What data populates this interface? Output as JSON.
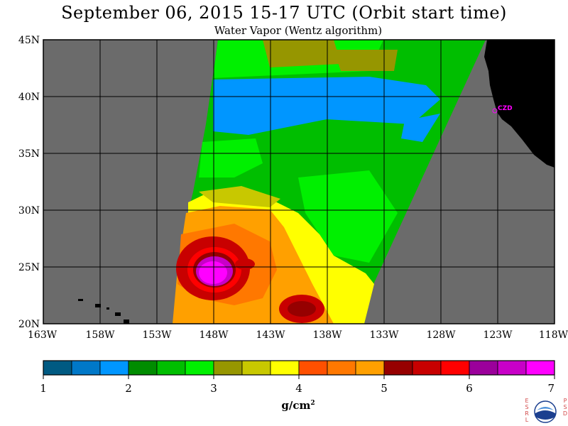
{
  "title": "September 06, 2015  15-17 UTC  (Orbit start time)",
  "subtitle": "Water Vapor (Wentz algorithm)",
  "map": {
    "lat_labels": [
      "45N",
      "40N",
      "35N",
      "30N",
      "25N",
      "20N"
    ],
    "lon_labels": [
      "163W",
      "158W",
      "153W",
      "148W",
      "143W",
      "138W",
      "133W",
      "128W",
      "123W",
      "118W"
    ],
    "station_label": "CZD",
    "colors": {
      "no_data": "#6b6b6b",
      "land": "#000000",
      "grid": "#000000",
      "station": "#ff00ff"
    }
  },
  "colorbar": {
    "ticks": [
      "1",
      "2",
      "3",
      "4",
      "5",
      "6",
      "7"
    ],
    "units_base": "g/cm",
    "units_sup": "2",
    "colors": [
      "#005a82",
      "#0078c8",
      "#0096ff",
      "#008c00",
      "#00be00",
      "#00f000",
      "#969600",
      "#c8c800",
      "#ffff00",
      "#ff5000",
      "#ff7800",
      "#ffa000",
      "#960000",
      "#c80000",
      "#ff0000",
      "#9b009b",
      "#c800c8",
      "#ff00ff"
    ]
  },
  "logo": {
    "left_letters": [
      "E",
      "S",
      "R",
      "L"
    ],
    "right_letters": [
      "P",
      "S",
      "D"
    ],
    "text": "NOAA"
  }
}
